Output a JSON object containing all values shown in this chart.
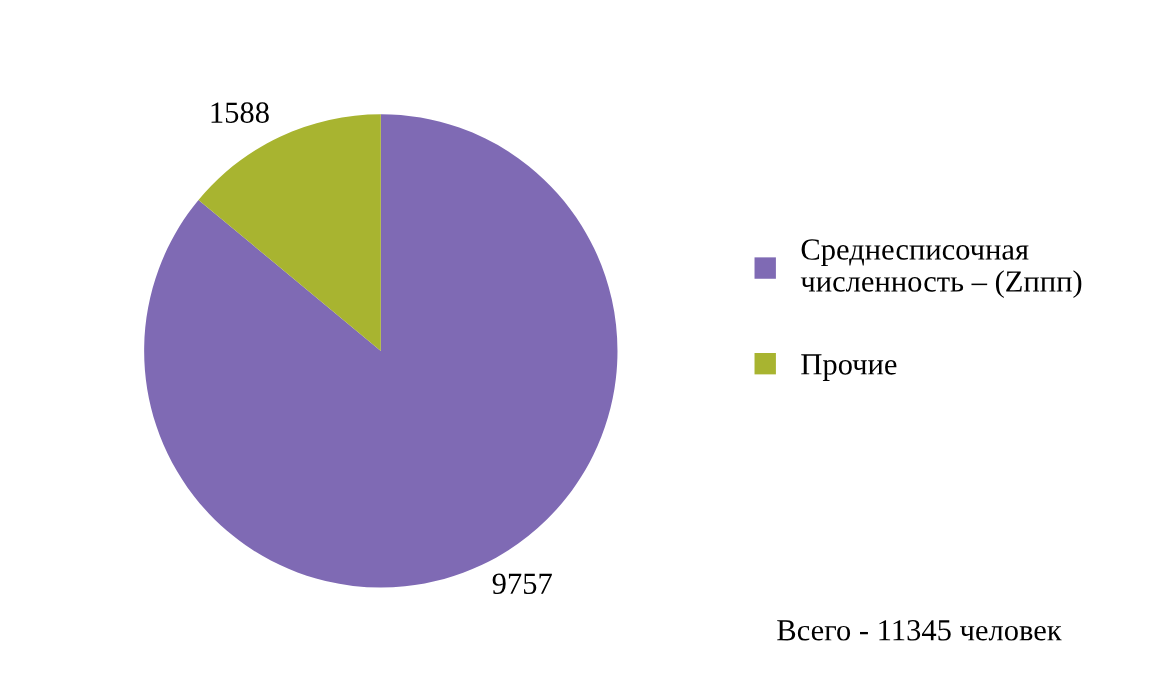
{
  "chart_data": {
    "type": "pie",
    "categories": [
      "Среднесписочная численность – (Zппп)",
      "Прочие"
    ],
    "values": [
      9757,
      1588
    ],
    "colors": [
      "#7f6ab4",
      "#a8b430"
    ],
    "data_labels": true,
    "legend": "right",
    "annotations": [
      "Всего - 11345 человек"
    ]
  }
}
